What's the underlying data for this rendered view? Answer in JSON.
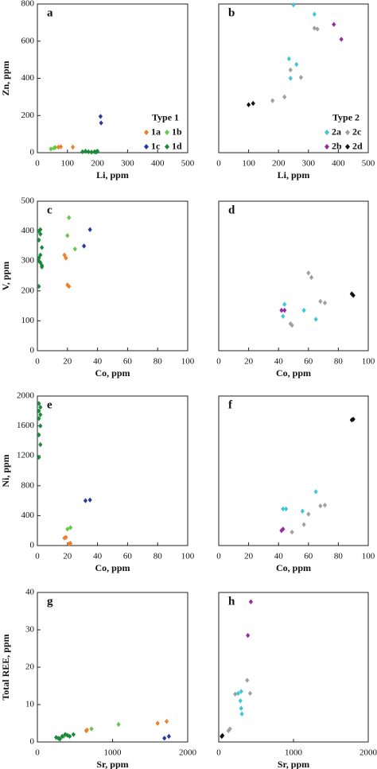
{
  "chart_data": [
    {
      "type": "scatter",
      "panel_label": "a",
      "xlabel": "Li, ppm",
      "ylabel": "Zn, ppm",
      "xlim": [
        0,
        500
      ],
      "ylim": [
        0,
        800
      ],
      "xticks": [
        0,
        100,
        200,
        300,
        400,
        500
      ],
      "yticks": [
        0,
        200,
        400,
        600,
        800
      ],
      "marker": "diamond",
      "legend_title": "Type 1",
      "legend_position": "center right",
      "series": [
        {
          "name": "1a",
          "color": "#f07f2a",
          "x": [
            70,
            78,
            118
          ],
          "y": [
            30,
            32,
            30
          ]
        },
        {
          "name": "1b",
          "color": "#66c84a",
          "x": [
            45,
            55,
            60
          ],
          "y": [
            20,
            25,
            28
          ]
        },
        {
          "name": "1c",
          "color": "#2b3aa0",
          "x": [
            210,
            212
          ],
          "y": [
            195,
            160
          ]
        },
        {
          "name": "1d",
          "color": "#1a8a3a",
          "x": [
            150,
            160,
            170,
            180,
            190,
            195,
            200
          ],
          "y": [
            5,
            8,
            5,
            3,
            5,
            3,
            8
          ]
        }
      ]
    },
    {
      "type": "scatter",
      "panel_label": "b",
      "xlabel": "Li, ppm",
      "xlim": [
        0,
        500
      ],
      "ylim": [
        0,
        800
      ],
      "xticks": [
        0,
        100,
        200,
        300,
        400,
        500
      ],
      "marker": "diamond",
      "legend_title": "Type 2",
      "legend_position": "center right",
      "series": [
        {
          "name": "2a",
          "color": "#3cc8d8",
          "x": [
            250,
            320,
            235,
            260,
            240
          ],
          "y": [
            795,
            745,
            505,
            475,
            400
          ]
        },
        {
          "name": "2c",
          "color": "#a0a0a0",
          "x": [
            320,
            330,
            240,
            275,
            220,
            180
          ],
          "y": [
            670,
            665,
            445,
            405,
            300,
            280
          ]
        },
        {
          "name": "2b",
          "color": "#9a2aa0",
          "x": [
            385,
            410
          ],
          "y": [
            690,
            610
          ]
        },
        {
          "name": "2d",
          "color": "#111111",
          "x": [
            100,
            115
          ],
          "y": [
            258,
            265
          ]
        }
      ]
    },
    {
      "type": "scatter",
      "panel_label": "c",
      "xlabel": "Co, ppm",
      "ylabel": "V, ppm",
      "xlim": [
        0,
        100
      ],
      "ylim": [
        0,
        500
      ],
      "xticks": [
        0,
        20,
        40,
        60,
        80,
        100
      ],
      "yticks": [
        0,
        100,
        200,
        300,
        400,
        500
      ],
      "marker": "diamond",
      "series": [
        {
          "name": "1a",
          "color": "#f07f2a",
          "x": [
            18,
            19,
            20,
            21
          ],
          "y": [
            320,
            310,
            220,
            215
          ]
        },
        {
          "name": "1b",
          "color": "#66c84a",
          "x": [
            21,
            20,
            25
          ],
          "y": [
            445,
            385,
            340
          ]
        },
        {
          "name": "1c",
          "color": "#2b3aa0",
          "x": [
            35,
            31
          ],
          "y": [
            405,
            350
          ]
        },
        {
          "name": "1d",
          "color": "#1a8a3a",
          "x": [
            1,
            2,
            2,
            1,
            3,
            2,
            1,
            2,
            3,
            1,
            1,
            3
          ],
          "y": [
            400,
            405,
            390,
            370,
            345,
            320,
            300,
            295,
            285,
            310,
            215,
            280
          ]
        }
      ]
    },
    {
      "type": "scatter",
      "panel_label": "d",
      "xlabel": "Co, ppm",
      "xlim": [
        0,
        100
      ],
      "ylim": [
        0,
        500
      ],
      "xticks": [
        0,
        20,
        40,
        60,
        80,
        100
      ],
      "marker": "diamond",
      "series": [
        {
          "name": "2a",
          "color": "#3cc8d8",
          "x": [
            44,
            43,
            57,
            65
          ],
          "y": [
            155,
            115,
            135,
            105
          ]
        },
        {
          "name": "2c",
          "color": "#a0a0a0",
          "x": [
            60,
            62,
            68,
            71,
            48,
            49
          ],
          "y": [
            260,
            245,
            165,
            160,
            90,
            85
          ]
        },
        {
          "name": "2b",
          "color": "#9a2aa0",
          "x": [
            42,
            44
          ],
          "y": [
            135,
            135
          ]
        },
        {
          "name": "2d",
          "color": "#111111",
          "x": [
            89,
            90
          ],
          "y": [
            190,
            185
          ]
        }
      ]
    },
    {
      "type": "scatter",
      "panel_label": "e",
      "xlabel": "Co, ppm",
      "ylabel": "Ni, ppm",
      "xlim": [
        0,
        100
      ],
      "ylim": [
        0,
        2000
      ],
      "xticks": [
        0,
        20,
        40,
        60,
        80,
        100
      ],
      "yticks": [
        0,
        400,
        800,
        1200,
        1600,
        2000
      ],
      "marker": "diamond",
      "series": [
        {
          "name": "1a",
          "color": "#f07f2a",
          "x": [
            18,
            19,
            21,
            22
          ],
          "y": [
            100,
            110,
            20,
            30
          ]
        },
        {
          "name": "1b",
          "color": "#66c84a",
          "x": [
            20,
            22
          ],
          "y": [
            220,
            240
          ]
        },
        {
          "name": "1c",
          "color": "#2b3aa0",
          "x": [
            32,
            35
          ],
          "y": [
            600,
            610
          ]
        },
        {
          "name": "1d",
          "color": "#1a8a3a",
          "x": [
            1,
            2,
            1,
            2,
            1,
            2,
            1,
            2,
            1
          ],
          "y": [
            1900,
            1850,
            1800,
            1750,
            1700,
            1600,
            1480,
            1350,
            1180
          ]
        }
      ]
    },
    {
      "type": "scatter",
      "panel_label": "f",
      "xlabel": "Co, ppm",
      "xlim": [
        0,
        100
      ],
      "ylim": [
        0,
        2000
      ],
      "xticks": [
        0,
        20,
        40,
        60,
        80,
        100
      ],
      "marker": "diamond",
      "series": [
        {
          "name": "2a",
          "color": "#3cc8d8",
          "x": [
            43,
            45,
            56,
            65
          ],
          "y": [
            490,
            490,
            460,
            720
          ]
        },
        {
          "name": "2c",
          "color": "#a0a0a0",
          "x": [
            60,
            68,
            71,
            49,
            57
          ],
          "y": [
            420,
            530,
            540,
            180,
            280
          ]
        },
        {
          "name": "2b",
          "color": "#9a2aa0",
          "x": [
            42,
            43
          ],
          "y": [
            200,
            220
          ]
        },
        {
          "name": "2d",
          "color": "#111111",
          "x": [
            89,
            90
          ],
          "y": [
            1680,
            1690
          ]
        }
      ]
    },
    {
      "type": "scatter",
      "panel_label": "g",
      "xlabel": "Sr, ppm",
      "ylabel": "Total REE, ppm",
      "xlim": [
        0,
        2000
      ],
      "ylim": [
        0,
        40
      ],
      "xticks": [
        0,
        1000,
        2000
      ],
      "yticks": [
        0,
        10,
        20,
        30,
        40
      ],
      "marker": "diamond",
      "series": [
        {
          "name": "1a",
          "color": "#f07f2a",
          "x": [
            650,
            660,
            1600,
            1720
          ],
          "y": [
            3,
            3.2,
            5,
            5.5
          ]
        },
        {
          "name": "1b",
          "color": "#66c84a",
          "x": [
            720,
            1080,
            350
          ],
          "y": [
            3.5,
            4.7,
            1.5
          ]
        },
        {
          "name": "1c",
          "color": "#2b3aa0",
          "x": [
            1690,
            1750
          ],
          "y": [
            1,
            1.5
          ]
        },
        {
          "name": "1d",
          "color": "#1a8a3a",
          "x": [
            250,
            300,
            330,
            370,
            400,
            430,
            480,
            280
          ],
          "y": [
            1.2,
            0.8,
            1.5,
            2,
            1.8,
            1.5,
            2,
            1
          ]
        }
      ]
    },
    {
      "type": "scatter",
      "panel_label": "h",
      "xlabel": "Sr, ppm",
      "xlim": [
        0,
        2000
      ],
      "ylim": [
        0,
        40
      ],
      "xticks": [
        0,
        1000,
        2000
      ],
      "marker": "diamond",
      "series": [
        {
          "name": "2a",
          "color": "#3cc8d8",
          "x": [
            260,
            290,
            300,
            310,
            300
          ],
          "y": [
            13,
            11,
            9,
            7.5,
            13.5
          ]
        },
        {
          "name": "2c",
          "color": "#a0a0a0",
          "x": [
            220,
            380,
            420,
            130,
            150
          ],
          "y": [
            12.8,
            16.5,
            13,
            3,
            3.5
          ]
        },
        {
          "name": "2b",
          "color": "#9a2aa0",
          "x": [
            390,
            430
          ],
          "y": [
            28.5,
            37.5
          ]
        },
        {
          "name": "2d",
          "color": "#111111",
          "x": [
            40,
            50
          ],
          "y": [
            1.5,
            1.7
          ]
        }
      ]
    }
  ]
}
